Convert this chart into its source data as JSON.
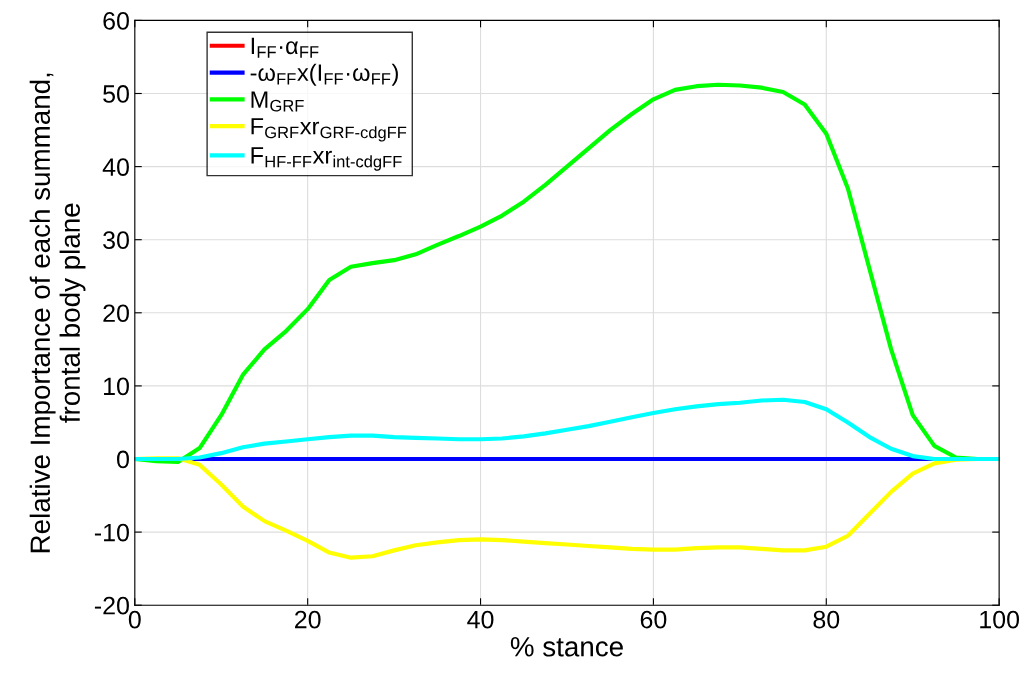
{
  "chart_data": {
    "type": "line",
    "xlabel": "% stance",
    "ylabel": "Relative Importance of each summand,\nfrontal body plane",
    "xlim": [
      0,
      100
    ],
    "xticks": [
      0,
      20,
      40,
      60,
      80,
      100
    ],
    "ylim": [
      -20,
      60
    ],
    "yticks": [
      -20,
      -10,
      0,
      10,
      20,
      30,
      40,
      50,
      60
    ],
    "grid": true,
    "legend": "top left",
    "x": [
      0,
      2.5,
      5,
      7.5,
      10,
      12.5,
      15,
      17.5,
      20,
      22.5,
      25,
      27.5,
      30,
      32.5,
      35,
      37.5,
      40,
      42.5,
      45,
      47.5,
      50,
      52.5,
      55,
      57.5,
      60,
      62.5,
      65,
      67.5,
      70,
      72.5,
      75,
      77.5,
      80,
      82.5,
      85,
      87.5,
      90,
      92.5,
      95,
      97.5,
      100
    ],
    "series": [
      {
        "name": "I$_{FF}$·α$_{FF}$",
        "color": "#ff0000",
        "values": [
          null,
          null,
          null,
          null,
          null,
          null,
          null,
          null,
          null,
          null,
          null,
          null,
          null,
          null,
          null,
          null,
          null,
          null,
          null,
          null,
          null,
          null,
          null,
          null,
          null,
          null,
          null,
          null,
          null,
          null,
          null,
          null,
          null,
          null,
          null,
          null,
          null,
          null,
          null,
          null,
          null
        ]
      },
      {
        "name": "-ω$_{FF}$x(I$_{FF}$·ω$_{FF}$)",
        "color": "#0000ff",
        "x": [
          0,
          100
        ],
        "values": [
          0,
          0
        ]
      },
      {
        "name": "M$_{GRF}$",
        "color": "#00ff00",
        "values": [
          0,
          -0.3,
          -0.4,
          1.5,
          6,
          11.5,
          15,
          17.5,
          20.5,
          24.5,
          26.3,
          26.8,
          27.2,
          28,
          29.3,
          30.5,
          31.8,
          33.3,
          35.2,
          37.5,
          40,
          42.5,
          45,
          47.2,
          49.2,
          50.5,
          51,
          51.2,
          51.1,
          50.8,
          50.2,
          48.5,
          44.5,
          37,
          26,
          15,
          6,
          1.8,
          0.2,
          0,
          0
        ]
      },
      {
        "name": "F$_{GRF}$xr$_{GRF-cdgFF}$",
        "color": "#ffff00",
        "values": [
          0,
          0.1,
          0.1,
          -0.8,
          -3.5,
          -6.5,
          -8.5,
          -9.8,
          -11.2,
          -12.8,
          -13.5,
          -13.3,
          -12.5,
          -11.8,
          -11.4,
          -11.1,
          -11,
          -11.1,
          -11.3,
          -11.5,
          -11.7,
          -11.9,
          -12.1,
          -12.3,
          -12.4,
          -12.4,
          -12.2,
          -12.1,
          -12.1,
          -12.3,
          -12.5,
          -12.5,
          -12,
          -10.5,
          -7.5,
          -4.5,
          -2,
          -0.6,
          -0.1,
          0,
          0
        ]
      },
      {
        "name": "F$_{HF-FF}$xr$_{int-cdgFF}$",
        "color": "#00ffff",
        "values": [
          0,
          0,
          0,
          0.2,
          0.8,
          1.6,
          2.1,
          2.4,
          2.7,
          3,
          3.2,
          3.2,
          3,
          2.9,
          2.8,
          2.7,
          2.7,
          2.8,
          3.1,
          3.5,
          4,
          4.5,
          5.1,
          5.7,
          6.3,
          6.8,
          7.2,
          7.5,
          7.7,
          8,
          8.1,
          7.8,
          6.8,
          5,
          3,
          1.4,
          0.4,
          0,
          0,
          0,
          0
        ]
      }
    ]
  }
}
